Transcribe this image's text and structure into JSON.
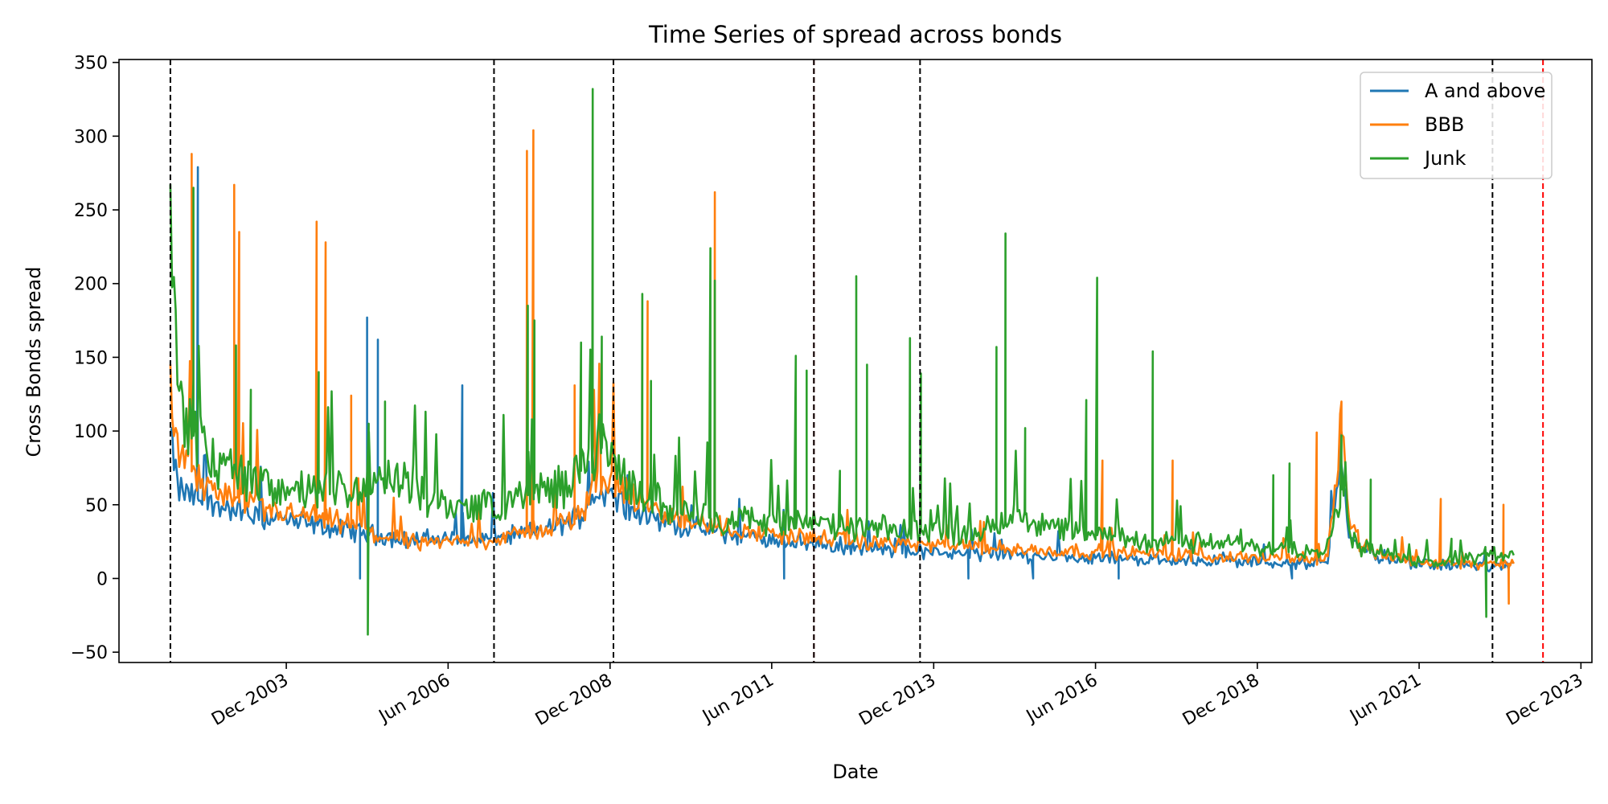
{
  "chart_data": {
    "type": "line",
    "title": "Time Series of spread across bonds",
    "xlabel": "Date",
    "ylabel": "Cross Bonds spread",
    "xlim": [
      "2001-05-01",
      "2024-02-01"
    ],
    "ylim": [
      -57,
      352
    ],
    "y_ticks": [
      -50,
      0,
      50,
      100,
      150,
      200,
      250,
      300,
      350
    ],
    "y_tick_labels": [
      "−50",
      "0",
      "50",
      "100",
      "150",
      "200",
      "250",
      "300",
      "350"
    ],
    "x_ticks": [
      "2003-12-01",
      "2006-06-01",
      "2008-12-01",
      "2011-06-01",
      "2013-12-01",
      "2016-06-01",
      "2018-12-01",
      "2021-06-01",
      "2023-12-01"
    ],
    "x_tick_labels": [
      "Dec 2003",
      "Jun 2006",
      "Dec 2008",
      "Jun 2011",
      "Dec 2013",
      "Jun 2016",
      "Dec 2018",
      "Jun 2021",
      "Dec 2023"
    ],
    "grid": false,
    "legend_position": "top-right",
    "vlines": [
      {
        "date": "2002-02-15",
        "color": "#000000"
      },
      {
        "date": "2007-02-15",
        "color": "#000000"
      },
      {
        "date": "2008-12-20",
        "color": "#000000"
      },
      {
        "date": "2012-01-25",
        "color": "#d62728"
      },
      {
        "date": "2012-01-25",
        "color": "#000000"
      },
      {
        "date": "2013-09-15",
        "color": "#000000"
      },
      {
        "date": "2022-07-20",
        "color": "#000000"
      },
      {
        "date": "2023-05-01",
        "color": "#ff0000"
      }
    ],
    "series": [
      {
        "name": "A and above",
        "color": "#1f77b4",
        "x": [
          "2002-02-15",
          "2002-04-01",
          "2002-07-01",
          "2002-10-01",
          "2003-01-01",
          "2003-04-01",
          "2003-07-01",
          "2003-10-01",
          "2004-01-01",
          "2004-04-01",
          "2004-07-01",
          "2004-10-01",
          "2005-01-01",
          "2005-04-01",
          "2005-07-01",
          "2005-10-01",
          "2006-01-01",
          "2006-04-01",
          "2006-07-01",
          "2006-10-01",
          "2007-01-01",
          "2007-04-01",
          "2007-07-01",
          "2007-10-01",
          "2008-01-01",
          "2008-04-01",
          "2008-07-01",
          "2008-10-01",
          "2009-01-01",
          "2009-04-01",
          "2009-07-01",
          "2009-10-01",
          "2010-01-01",
          "2010-04-01",
          "2010-07-01",
          "2010-10-01",
          "2011-01-01",
          "2011-04-01",
          "2011-07-01",
          "2011-10-01",
          "2012-01-01",
          "2012-04-01",
          "2012-07-01",
          "2012-10-01",
          "2013-01-01",
          "2013-04-01",
          "2013-07-01",
          "2013-10-01",
          "2014-01-01",
          "2014-04-01",
          "2014-07-01",
          "2014-10-01",
          "2015-01-01",
          "2015-04-01",
          "2015-07-01",
          "2015-10-01",
          "2016-01-01",
          "2016-04-01",
          "2016-07-01",
          "2016-10-01",
          "2017-01-01",
          "2017-04-01",
          "2017-07-01",
          "2017-10-01",
          "2018-01-01",
          "2018-04-01",
          "2018-07-01",
          "2018-10-01",
          "2019-01-01",
          "2019-04-01",
          "2019-07-01",
          "2019-10-01",
          "2020-01-01",
          "2020-03-20",
          "2020-05-01",
          "2020-07-01",
          "2020-10-01",
          "2021-01-01",
          "2021-04-01",
          "2021-07-01",
          "2021-10-01",
          "2022-01-01",
          "2022-04-01",
          "2022-07-01",
          "2022-10-01",
          "2022-11-20"
        ],
        "y": [
          95,
          60,
          55,
          50,
          48,
          45,
          40,
          42,
          38,
          37,
          35,
          33,
          32,
          30,
          28,
          26,
          27,
          27,
          27,
          26,
          27,
          28,
          30,
          32,
          34,
          38,
          45,
          60,
          55,
          48,
          42,
          38,
          36,
          34,
          32,
          30,
          28,
          27,
          26,
          25,
          24,
          23,
          22,
          21,
          20,
          19,
          19,
          18,
          18,
          17,
          17,
          16,
          16,
          16,
          15,
          15,
          15,
          14,
          14,
          14,
          13,
          13,
          13,
          12,
          12,
          12,
          12,
          11,
          11,
          11,
          10,
          10,
          10,
          90,
          30,
          20,
          15,
          12,
          10,
          9,
          9,
          9,
          9,
          9,
          8,
          8
        ]
      },
      {
        "name": "BBB",
        "color": "#ff7f0e",
        "x": [
          "2002-02-15",
          "2002-04-01",
          "2002-07-01",
          "2002-10-01",
          "2003-01-01",
          "2003-04-01",
          "2003-07-01",
          "2003-10-01",
          "2004-01-01",
          "2004-04-01",
          "2004-07-01",
          "2004-10-01",
          "2005-01-01",
          "2005-04-01",
          "2005-07-01",
          "2005-10-01",
          "2006-01-01",
          "2006-04-01",
          "2006-07-01",
          "2006-10-01",
          "2007-01-01",
          "2007-04-01",
          "2007-07-01",
          "2007-10-01",
          "2008-01-01",
          "2008-04-01",
          "2008-07-01",
          "2008-10-01",
          "2009-01-01",
          "2009-04-01",
          "2009-07-01",
          "2009-10-01",
          "2010-01-01",
          "2010-04-01",
          "2010-07-01",
          "2010-10-01",
          "2011-01-01",
          "2011-04-01",
          "2011-07-01",
          "2011-10-01",
          "2012-01-01",
          "2012-04-01",
          "2012-07-01",
          "2012-10-01",
          "2013-01-01",
          "2013-04-01",
          "2013-07-01",
          "2013-10-01",
          "2014-01-01",
          "2014-04-01",
          "2014-07-01",
          "2014-10-01",
          "2015-01-01",
          "2015-04-01",
          "2015-07-01",
          "2015-10-01",
          "2016-01-01",
          "2016-04-01",
          "2016-07-01",
          "2016-10-01",
          "2017-01-01",
          "2017-04-01",
          "2017-07-01",
          "2017-10-01",
          "2018-01-01",
          "2018-04-01",
          "2018-07-01",
          "2018-10-01",
          "2019-01-01",
          "2019-04-01",
          "2019-07-01",
          "2019-10-01",
          "2020-01-01",
          "2020-03-20",
          "2020-05-01",
          "2020-07-01",
          "2020-10-01",
          "2021-01-01",
          "2021-04-01",
          "2021-07-01",
          "2021-10-01",
          "2022-01-01",
          "2022-04-01",
          "2022-07-01",
          "2022-10-01",
          "2022-11-20"
        ],
        "y": [
          130,
          85,
          70,
          60,
          55,
          50,
          48,
          45,
          44,
          42,
          40,
          38,
          35,
          30,
          28,
          26,
          25,
          24,
          25,
          25,
          26,
          27,
          30,
          33,
          35,
          38,
          45,
          70,
          65,
          55,
          48,
          43,
          40,
          38,
          36,
          34,
          32,
          31,
          30,
          29,
          28,
          27,
          26,
          25,
          25,
          24,
          24,
          23,
          22,
          22,
          21,
          21,
          20,
          20,
          19,
          19,
          19,
          18,
          18,
          18,
          17,
          17,
          16,
          16,
          16,
          15,
          15,
          15,
          14,
          14,
          14,
          13,
          13,
          110,
          40,
          25,
          18,
          15,
          12,
          11,
          10,
          10,
          10,
          10,
          10,
          10
        ]
      },
      {
        "name": "Junk",
        "color": "#2ca02c",
        "x": [
          "2002-02-15",
          "2002-04-01",
          "2002-07-01",
          "2002-10-01",
          "2003-01-01",
          "2003-04-01",
          "2003-07-01",
          "2003-10-01",
          "2004-01-01",
          "2004-04-01",
          "2004-07-01",
          "2004-10-01",
          "2005-01-01",
          "2005-04-01",
          "2005-07-01",
          "2005-10-01",
          "2006-01-01",
          "2006-04-01",
          "2006-07-01",
          "2006-10-01",
          "2007-01-01",
          "2007-04-01",
          "2007-07-01",
          "2007-10-01",
          "2008-01-01",
          "2008-04-01",
          "2008-07-01",
          "2008-10-01",
          "2009-01-01",
          "2009-04-01",
          "2009-07-01",
          "2009-10-01",
          "2010-01-01",
          "2010-04-01",
          "2010-07-01",
          "2010-10-01",
          "2011-01-01",
          "2011-04-01",
          "2011-07-01",
          "2011-10-01",
          "2012-01-01",
          "2012-04-01",
          "2012-07-01",
          "2012-10-01",
          "2013-01-01",
          "2013-04-01",
          "2013-07-01",
          "2013-10-01",
          "2014-01-01",
          "2014-04-01",
          "2014-07-01",
          "2014-10-01",
          "2015-01-01",
          "2015-04-01",
          "2015-07-01",
          "2015-10-01",
          "2016-01-01",
          "2016-04-01",
          "2016-07-01",
          "2016-10-01",
          "2017-01-01",
          "2017-04-01",
          "2017-07-01",
          "2017-10-01",
          "2018-01-01",
          "2018-04-01",
          "2018-07-01",
          "2018-10-01",
          "2019-01-01",
          "2019-04-01",
          "2019-07-01",
          "2019-10-01",
          "2020-01-01",
          "2020-03-20",
          "2020-05-01",
          "2020-07-01",
          "2020-10-01",
          "2021-01-01",
          "2021-04-01",
          "2021-07-01",
          "2021-10-01",
          "2022-01-01",
          "2022-04-01",
          "2022-07-01",
          "2022-10-01",
          "2022-11-20"
        ],
        "y": [
          240,
          120,
          95,
          80,
          75,
          70,
          65,
          62,
          60,
          58,
          58,
          60,
          60,
          62,
          65,
          68,
          55,
          52,
          50,
          48,
          50,
          52,
          55,
          58,
          60,
          65,
          75,
          90,
          75,
          62,
          55,
          50,
          46,
          44,
          42,
          40,
          40,
          39,
          38,
          38,
          37,
          36,
          35,
          34,
          34,
          33,
          32,
          32,
          32,
          31,
          31,
          33,
          38,
          45,
          40,
          35,
          32,
          30,
          29,
          28,
          27,
          26,
          25,
          25,
          24,
          24,
          23,
          22,
          22,
          21,
          21,
          20,
          20,
          65,
          30,
          22,
          18,
          15,
          13,
          12,
          12,
          12,
          15,
          18,
          16,
          15
        ]
      }
    ],
    "spikes": [
      {
        "series": "A and above",
        "date": "2002-07-20",
        "value": 279
      },
      {
        "series": "A and above",
        "date": "2005-03-01",
        "value": 177
      },
      {
        "series": "A and above",
        "date": "2005-05-01",
        "value": 162
      },
      {
        "series": "A and above",
        "date": "2006-08-20",
        "value": 131
      },
      {
        "series": "A and above",
        "date": "2005-01-20",
        "value": 0
      },
      {
        "series": "A and above",
        "date": "2011-08-10",
        "value": 0
      },
      {
        "series": "A and above",
        "date": "2014-06-15",
        "value": 0
      },
      {
        "series": "A and above",
        "date": "2015-06-15",
        "value": 0
      },
      {
        "series": "A and above",
        "date": "2016-10-10",
        "value": 0
      },
      {
        "series": "A and above",
        "date": "2019-06-15",
        "value": 0
      },
      {
        "series": "A and above",
        "date": "2020-03-15",
        "value": 100
      },
      {
        "series": "BBB",
        "date": "2002-06-15",
        "value": 288
      },
      {
        "series": "BBB",
        "date": "2003-02-10",
        "value": 267
      },
      {
        "series": "BBB",
        "date": "2003-03-10",
        "value": 235
      },
      {
        "series": "BBB",
        "date": "2004-05-20",
        "value": 242
      },
      {
        "series": "BBB",
        "date": "2004-07-10",
        "value": 228
      },
      {
        "series": "BBB",
        "date": "2004-12-01",
        "value": 124
      },
      {
        "series": "BBB",
        "date": "2007-08-20",
        "value": 290
      },
      {
        "series": "BBB",
        "date": "2007-09-25",
        "value": 304
      },
      {
        "series": "BBB",
        "date": "2008-05-15",
        "value": 131
      },
      {
        "series": "BBB",
        "date": "2009-07-01",
        "value": 188
      },
      {
        "series": "BBB",
        "date": "2010-07-15",
        "value": 262
      },
      {
        "series": "BBB",
        "date": "2016-07-10",
        "value": 80
      },
      {
        "series": "BBB",
        "date": "2017-08-10",
        "value": 80
      },
      {
        "series": "BBB",
        "date": "2019-11-01",
        "value": 99
      },
      {
        "series": "BBB",
        "date": "2020-03-20",
        "value": 120
      },
      {
        "series": "BBB",
        "date": "2021-10-01",
        "value": 54
      },
      {
        "series": "BBB",
        "date": "2022-09-20",
        "value": 50
      },
      {
        "series": "BBB",
        "date": "2022-10-20",
        "value": -17
      },
      {
        "series": "Junk",
        "date": "2002-06-25",
        "value": 265
      },
      {
        "series": "Junk",
        "date": "2003-02-20",
        "value": 158
      },
      {
        "series": "Junk",
        "date": "2003-05-15",
        "value": 128
      },
      {
        "series": "Junk",
        "date": "2004-06-01",
        "value": 140
      },
      {
        "series": "Junk",
        "date": "2005-03-10",
        "value": 105
      },
      {
        "series": "Junk",
        "date": "2005-03-05",
        "value": -38
      },
      {
        "series": "Junk",
        "date": "2005-06-10",
        "value": 120
      },
      {
        "series": "Junk",
        "date": "2007-08-25",
        "value": 185
      },
      {
        "series": "Junk",
        "date": "2007-10-01",
        "value": 175
      },
      {
        "series": "Junk",
        "date": "2008-06-20",
        "value": 160
      },
      {
        "series": "Junk",
        "date": "2008-08-25",
        "value": 332
      },
      {
        "series": "Junk",
        "date": "2008-10-15",
        "value": 164
      },
      {
        "series": "Junk",
        "date": "2009-06-01",
        "value": 193
      },
      {
        "series": "Junk",
        "date": "2009-07-20",
        "value": 134
      },
      {
        "series": "Junk",
        "date": "2010-06-20",
        "value": 224
      },
      {
        "series": "Junk",
        "date": "2010-07-15",
        "value": 202
      },
      {
        "series": "Junk",
        "date": "2011-10-15",
        "value": 151
      },
      {
        "series": "Junk",
        "date": "2011-12-15",
        "value": 141
      },
      {
        "series": "Junk",
        "date": "2012-06-20",
        "value": 73
      },
      {
        "series": "Junk",
        "date": "2012-09-20",
        "value": 205
      },
      {
        "series": "Junk",
        "date": "2012-11-20",
        "value": 145
      },
      {
        "series": "Junk",
        "date": "2013-07-20",
        "value": 163
      },
      {
        "series": "Junk",
        "date": "2013-09-20",
        "value": 139
      },
      {
        "series": "Junk",
        "date": "2014-11-20",
        "value": 157
      },
      {
        "series": "Junk",
        "date": "2015-01-10",
        "value": 234
      },
      {
        "series": "Junk",
        "date": "2015-05-01",
        "value": 102
      },
      {
        "series": "Junk",
        "date": "2016-04-10",
        "value": 121
      },
      {
        "series": "Junk",
        "date": "2016-06-10",
        "value": 204
      },
      {
        "series": "Junk",
        "date": "2017-04-20",
        "value": 154
      },
      {
        "series": "Junk",
        "date": "2019-03-01",
        "value": 70
      },
      {
        "series": "Junk",
        "date": "2019-06-01",
        "value": 78
      },
      {
        "series": "Junk",
        "date": "2020-03-20",
        "value": 97
      },
      {
        "series": "Junk",
        "date": "2020-09-01",
        "value": 67
      },
      {
        "series": "Junk",
        "date": "2021-12-01",
        "value": 27
      },
      {
        "series": "Junk",
        "date": "2022-06-15",
        "value": -26
      }
    ]
  }
}
